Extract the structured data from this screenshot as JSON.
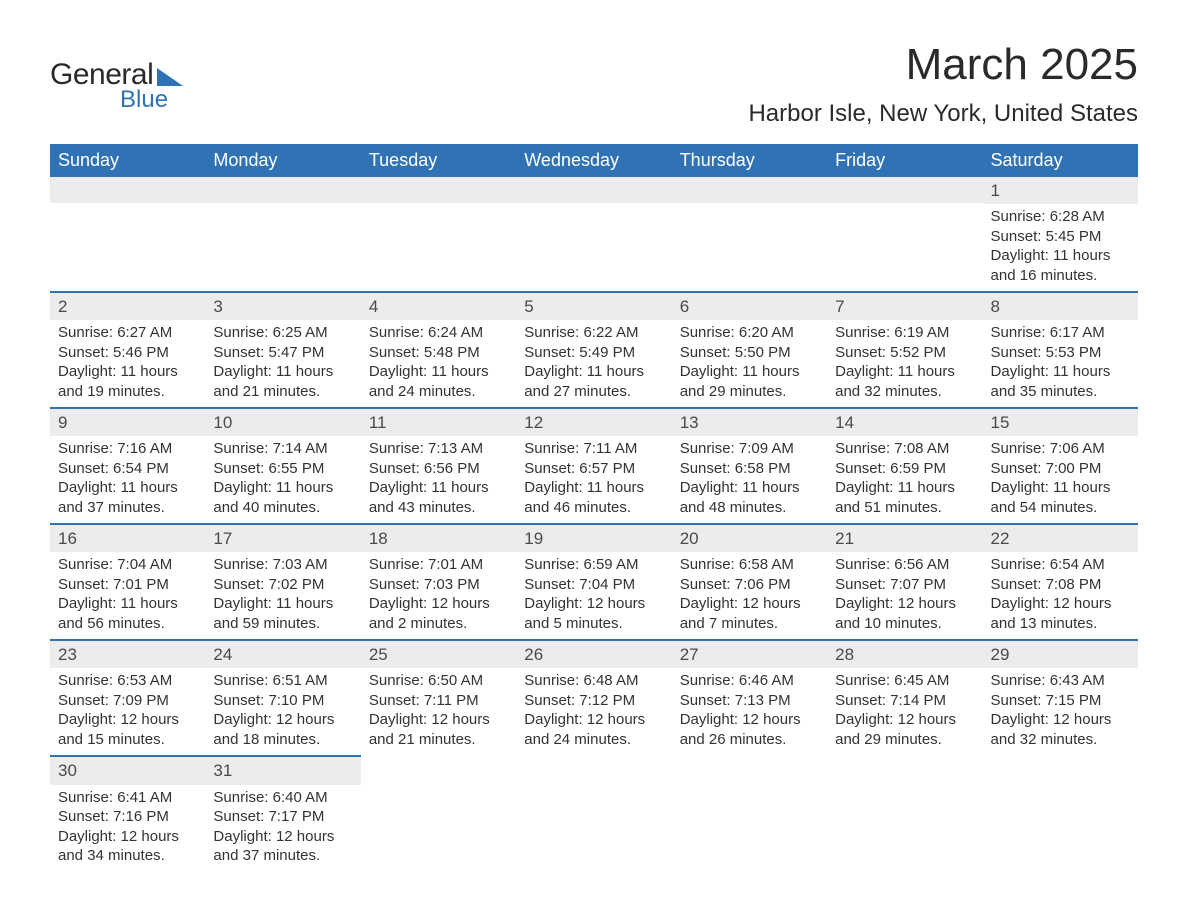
{
  "logo": {
    "text_general": "General",
    "text_blue": "Blue"
  },
  "title": "March 2025",
  "subtitle": "Harbor Isle, New York, United States",
  "colors": {
    "header_bg": "#2f73b5",
    "header_text": "#ffffff",
    "daynum_bg": "#ececec",
    "border": "#2f73b5",
    "body_text": "#333333",
    "page_bg": "#ffffff"
  },
  "fonts": {
    "title_size_pt": 33,
    "subtitle_size_pt": 18,
    "header_size_pt": 14,
    "body_size_pt": 11
  },
  "day_headers": [
    "Sunday",
    "Monday",
    "Tuesday",
    "Wednesday",
    "Thursday",
    "Friday",
    "Saturday"
  ],
  "weeks": [
    [
      null,
      null,
      null,
      null,
      null,
      null,
      {
        "n": "1",
        "sr": "Sunrise: 6:28 AM",
        "ss": "Sunset: 5:45 PM",
        "d1": "Daylight: 11 hours",
        "d2": "and 16 minutes."
      }
    ],
    [
      {
        "n": "2",
        "sr": "Sunrise: 6:27 AM",
        "ss": "Sunset: 5:46 PM",
        "d1": "Daylight: 11 hours",
        "d2": "and 19 minutes."
      },
      {
        "n": "3",
        "sr": "Sunrise: 6:25 AM",
        "ss": "Sunset: 5:47 PM",
        "d1": "Daylight: 11 hours",
        "d2": "and 21 minutes."
      },
      {
        "n": "4",
        "sr": "Sunrise: 6:24 AM",
        "ss": "Sunset: 5:48 PM",
        "d1": "Daylight: 11 hours",
        "d2": "and 24 minutes."
      },
      {
        "n": "5",
        "sr": "Sunrise: 6:22 AM",
        "ss": "Sunset: 5:49 PM",
        "d1": "Daylight: 11 hours",
        "d2": "and 27 minutes."
      },
      {
        "n": "6",
        "sr": "Sunrise: 6:20 AM",
        "ss": "Sunset: 5:50 PM",
        "d1": "Daylight: 11 hours",
        "d2": "and 29 minutes."
      },
      {
        "n": "7",
        "sr": "Sunrise: 6:19 AM",
        "ss": "Sunset: 5:52 PM",
        "d1": "Daylight: 11 hours",
        "d2": "and 32 minutes."
      },
      {
        "n": "8",
        "sr": "Sunrise: 6:17 AM",
        "ss": "Sunset: 5:53 PM",
        "d1": "Daylight: 11 hours",
        "d2": "and 35 minutes."
      }
    ],
    [
      {
        "n": "9",
        "sr": "Sunrise: 7:16 AM",
        "ss": "Sunset: 6:54 PM",
        "d1": "Daylight: 11 hours",
        "d2": "and 37 minutes."
      },
      {
        "n": "10",
        "sr": "Sunrise: 7:14 AM",
        "ss": "Sunset: 6:55 PM",
        "d1": "Daylight: 11 hours",
        "d2": "and 40 minutes."
      },
      {
        "n": "11",
        "sr": "Sunrise: 7:13 AM",
        "ss": "Sunset: 6:56 PM",
        "d1": "Daylight: 11 hours",
        "d2": "and 43 minutes."
      },
      {
        "n": "12",
        "sr": "Sunrise: 7:11 AM",
        "ss": "Sunset: 6:57 PM",
        "d1": "Daylight: 11 hours",
        "d2": "and 46 minutes."
      },
      {
        "n": "13",
        "sr": "Sunrise: 7:09 AM",
        "ss": "Sunset: 6:58 PM",
        "d1": "Daylight: 11 hours",
        "d2": "and 48 minutes."
      },
      {
        "n": "14",
        "sr": "Sunrise: 7:08 AM",
        "ss": "Sunset: 6:59 PM",
        "d1": "Daylight: 11 hours",
        "d2": "and 51 minutes."
      },
      {
        "n": "15",
        "sr": "Sunrise: 7:06 AM",
        "ss": "Sunset: 7:00 PM",
        "d1": "Daylight: 11 hours",
        "d2": "and 54 minutes."
      }
    ],
    [
      {
        "n": "16",
        "sr": "Sunrise: 7:04 AM",
        "ss": "Sunset: 7:01 PM",
        "d1": "Daylight: 11 hours",
        "d2": "and 56 minutes."
      },
      {
        "n": "17",
        "sr": "Sunrise: 7:03 AM",
        "ss": "Sunset: 7:02 PM",
        "d1": "Daylight: 11 hours",
        "d2": "and 59 minutes."
      },
      {
        "n": "18",
        "sr": "Sunrise: 7:01 AM",
        "ss": "Sunset: 7:03 PM",
        "d1": "Daylight: 12 hours",
        "d2": "and 2 minutes."
      },
      {
        "n": "19",
        "sr": "Sunrise: 6:59 AM",
        "ss": "Sunset: 7:04 PM",
        "d1": "Daylight: 12 hours",
        "d2": "and 5 minutes."
      },
      {
        "n": "20",
        "sr": "Sunrise: 6:58 AM",
        "ss": "Sunset: 7:06 PM",
        "d1": "Daylight: 12 hours",
        "d2": "and 7 minutes."
      },
      {
        "n": "21",
        "sr": "Sunrise: 6:56 AM",
        "ss": "Sunset: 7:07 PM",
        "d1": "Daylight: 12 hours",
        "d2": "and 10 minutes."
      },
      {
        "n": "22",
        "sr": "Sunrise: 6:54 AM",
        "ss": "Sunset: 7:08 PM",
        "d1": "Daylight: 12 hours",
        "d2": "and 13 minutes."
      }
    ],
    [
      {
        "n": "23",
        "sr": "Sunrise: 6:53 AM",
        "ss": "Sunset: 7:09 PM",
        "d1": "Daylight: 12 hours",
        "d2": "and 15 minutes."
      },
      {
        "n": "24",
        "sr": "Sunrise: 6:51 AM",
        "ss": "Sunset: 7:10 PM",
        "d1": "Daylight: 12 hours",
        "d2": "and 18 minutes."
      },
      {
        "n": "25",
        "sr": "Sunrise: 6:50 AM",
        "ss": "Sunset: 7:11 PM",
        "d1": "Daylight: 12 hours",
        "d2": "and 21 minutes."
      },
      {
        "n": "26",
        "sr": "Sunrise: 6:48 AM",
        "ss": "Sunset: 7:12 PM",
        "d1": "Daylight: 12 hours",
        "d2": "and 24 minutes."
      },
      {
        "n": "27",
        "sr": "Sunrise: 6:46 AM",
        "ss": "Sunset: 7:13 PM",
        "d1": "Daylight: 12 hours",
        "d2": "and 26 minutes."
      },
      {
        "n": "28",
        "sr": "Sunrise: 6:45 AM",
        "ss": "Sunset: 7:14 PM",
        "d1": "Daylight: 12 hours",
        "d2": "and 29 minutes."
      },
      {
        "n": "29",
        "sr": "Sunrise: 6:43 AM",
        "ss": "Sunset: 7:15 PM",
        "d1": "Daylight: 12 hours",
        "d2": "and 32 minutes."
      }
    ],
    [
      {
        "n": "30",
        "sr": "Sunrise: 6:41 AM",
        "ss": "Sunset: 7:16 PM",
        "d1": "Daylight: 12 hours",
        "d2": "and 34 minutes."
      },
      {
        "n": "31",
        "sr": "Sunrise: 6:40 AM",
        "ss": "Sunset: 7:17 PM",
        "d1": "Daylight: 12 hours",
        "d2": "and 37 minutes."
      },
      null,
      null,
      null,
      null,
      null
    ]
  ]
}
